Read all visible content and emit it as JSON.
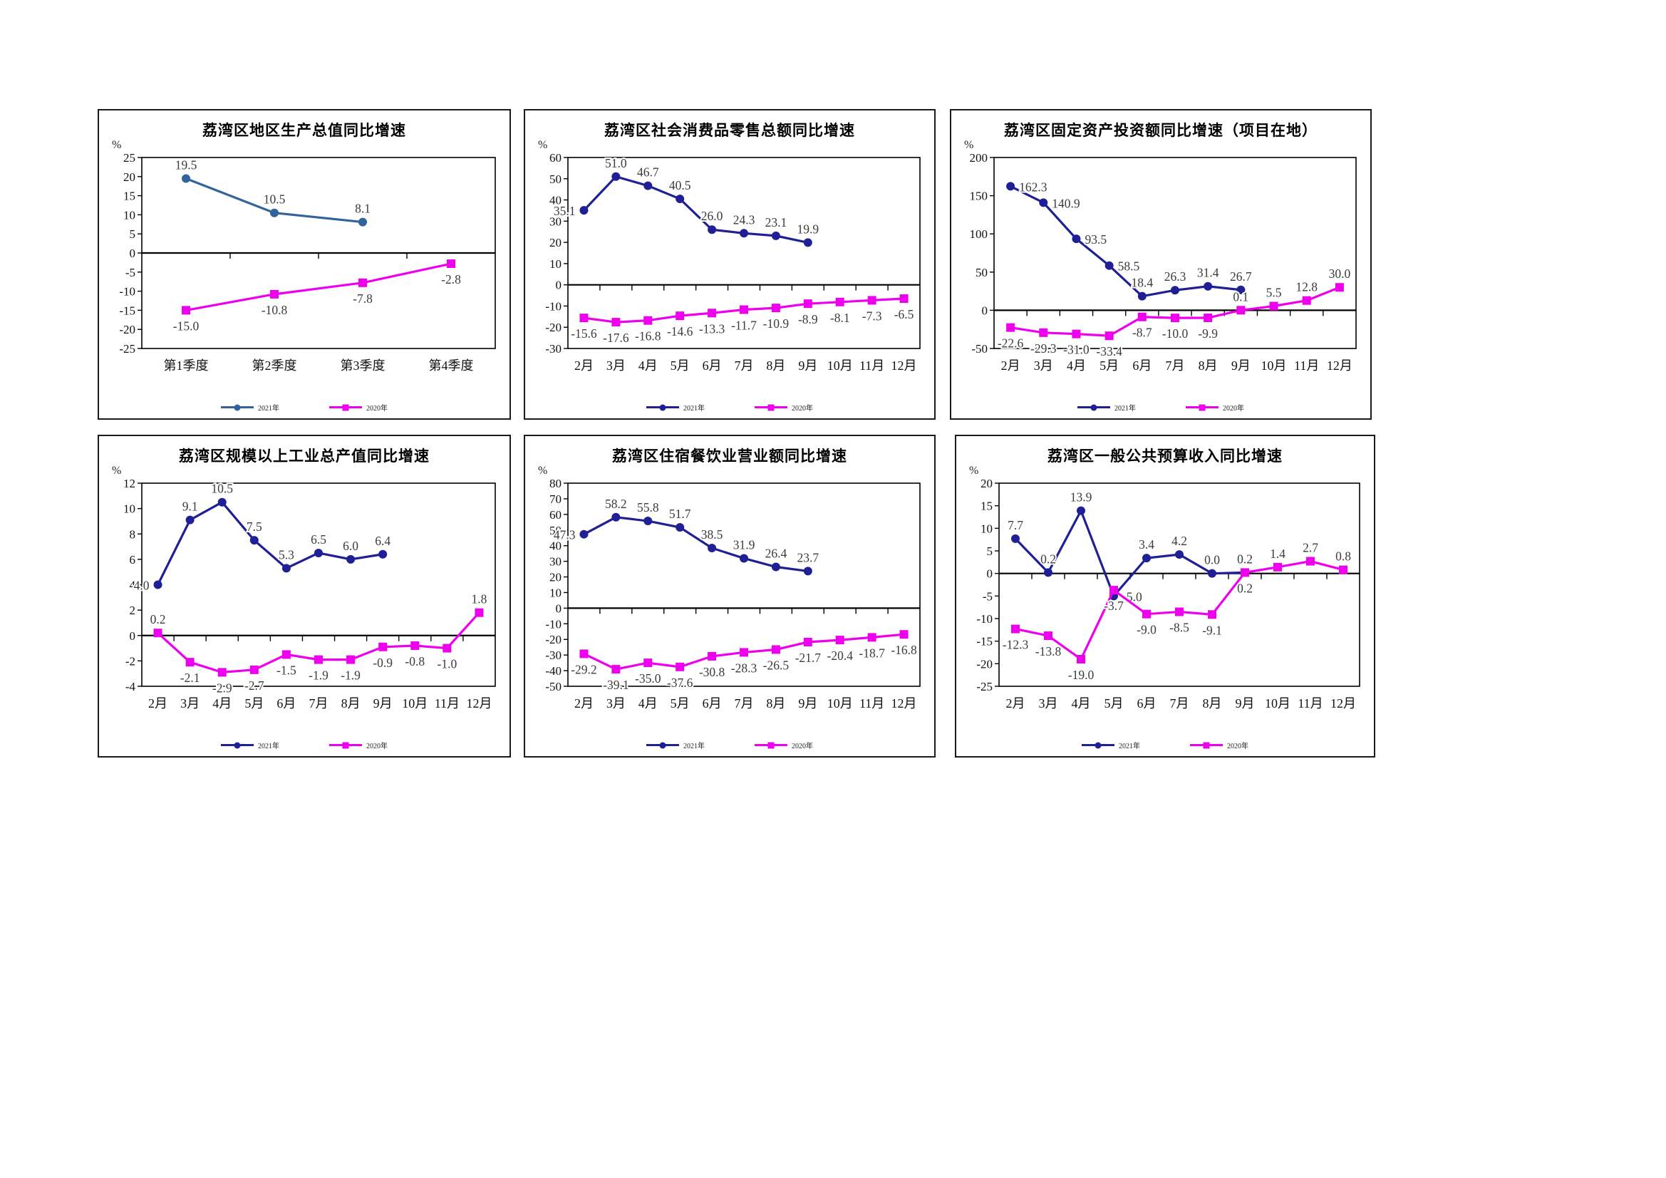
{
  "page": {
    "background": "#ffffff"
  },
  "chart_data": [
    {
      "type": "line",
      "title": "荔湾区地区生产总值同比增速",
      "unit": "%",
      "categories": [
        "第1季度",
        "第2季度",
        "第3季度",
        "第4季度"
      ],
      "ylim": [
        -25,
        25
      ],
      "ytick_step": 5,
      "grid": false,
      "legend_position": "bottom",
      "series": [
        {
          "name": "2021年",
          "color": "#31639c",
          "marker": "circle",
          "label_side": "above",
          "values": [
            19.5,
            10.5,
            8.1
          ],
          "label_side_overrides": {}
        },
        {
          "name": "2020年",
          "color": "#ee00ee",
          "marker": "square",
          "label_side": "below",
          "values": [
            -15.0,
            -10.8,
            -7.8,
            -2.8
          ],
          "label_side_overrides": {}
        }
      ]
    },
    {
      "type": "line",
      "title": "荔湾区社会消费品零售总额同比增速",
      "unit": "%",
      "categories": [
        "2月",
        "3月",
        "4月",
        "5月",
        "6月",
        "7月",
        "8月",
        "9月",
        "10月",
        "11月",
        "12月"
      ],
      "ylim": [
        -30,
        60
      ],
      "ytick_step": 10,
      "grid": false,
      "legend_position": "bottom",
      "series": [
        {
          "name": "2021年",
          "color": "#1f1f96",
          "marker": "circle",
          "label_side": "above",
          "values": [
            35.1,
            51.0,
            46.7,
            40.5,
            26.0,
            24.3,
            23.1,
            19.9
          ],
          "label_side_overrides": {
            "0": "left"
          }
        },
        {
          "name": "2020年",
          "color": "#ee00ee",
          "marker": "square",
          "label_side": "below",
          "values": [
            -15.6,
            -17.6,
            -16.8,
            -14.6,
            -13.3,
            -11.7,
            -10.9,
            -8.9,
            -8.1,
            -7.3,
            -6.5
          ],
          "label_side_overrides": {}
        }
      ]
    },
    {
      "type": "line",
      "title": "荔湾区固定资产投资额同比增速（项目在地）",
      "unit": "%",
      "categories": [
        "2月",
        "3月",
        "4月",
        "5月",
        "6月",
        "7月",
        "8月",
        "9月",
        "10月",
        "11月",
        "12月"
      ],
      "ylim": [
        -50,
        200
      ],
      "ytick_step": 50,
      "grid": false,
      "legend_position": "bottom",
      "series": [
        {
          "name": "2021年",
          "color": "#1f1f96",
          "marker": "circle",
          "label_side": "above",
          "values": [
            162.3,
            140.9,
            93.5,
            58.5,
            18.4,
            26.3,
            31.4,
            26.7
          ],
          "label_side_overrides": {
            "0": "right",
            "1": "right",
            "2": "right",
            "3": "right"
          }
        },
        {
          "name": "2020年",
          "color": "#ee00ee",
          "marker": "square",
          "label_side": "below",
          "values": [
            -22.6,
            -29.3,
            -31.0,
            -33.4,
            -8.7,
            -10.0,
            -9.9,
            0.1,
            5.5,
            12.8,
            30.0
          ],
          "label_side_overrides": {
            "7": "above",
            "8": "above",
            "9": "above",
            "10": "above"
          }
        }
      ]
    },
    {
      "type": "line",
      "title": "荔湾区规模以上工业总产值同比增速",
      "unit": "%",
      "categories": [
        "2月",
        "3月",
        "4月",
        "5月",
        "6月",
        "7月",
        "8月",
        "9月",
        "10月",
        "11月",
        "12月"
      ],
      "ylim": [
        -4,
        12
      ],
      "ytick_step": 2,
      "grid": false,
      "legend_position": "bottom",
      "series": [
        {
          "name": "2021年",
          "color": "#1f1f96",
          "marker": "circle",
          "label_side": "above",
          "values": [
            4.0,
            9.1,
            10.5,
            7.5,
            5.3,
            6.5,
            6.0,
            6.4
          ],
          "label_side_overrides": {
            "0": "left"
          }
        },
        {
          "name": "2020年",
          "color": "#ee00ee",
          "marker": "square",
          "label_side": "below",
          "values": [
            0.2,
            -2.1,
            -2.9,
            -2.7,
            -1.5,
            -1.9,
            -1.9,
            -0.9,
            -0.8,
            -1.0,
            1.8
          ],
          "label_side_overrides": {
            "0": "above",
            "10": "above"
          }
        }
      ]
    },
    {
      "type": "line",
      "title": "荔湾区住宿餐饮业营业额同比增速",
      "unit": "%",
      "categories": [
        "2月",
        "3月",
        "4月",
        "5月",
        "6月",
        "7月",
        "8月",
        "9月",
        "10月",
        "11月",
        "12月"
      ],
      "ylim": [
        -50,
        80
      ],
      "ytick_step": 10,
      "grid": false,
      "legend_position": "bottom",
      "series": [
        {
          "name": "2021年",
          "color": "#1f1f96",
          "marker": "circle",
          "label_side": "above",
          "values": [
            47.3,
            58.2,
            55.8,
            51.7,
            38.5,
            31.9,
            26.4,
            23.7
          ],
          "label_side_overrides": {
            "0": "left"
          }
        },
        {
          "name": "2020年",
          "color": "#ee00ee",
          "marker": "square",
          "label_side": "below",
          "values": [
            -29.2,
            -39.1,
            -35.0,
            -37.6,
            -30.8,
            -28.3,
            -26.5,
            -21.7,
            -20.4,
            -18.7,
            -16.8
          ],
          "label_side_overrides": {}
        }
      ]
    },
    {
      "type": "line",
      "title": "荔湾区一般公共预算收入同比增速",
      "unit": "%",
      "categories": [
        "2月",
        "3月",
        "4月",
        "5月",
        "6月",
        "7月",
        "8月",
        "9月",
        "10月",
        "11月",
        "12月"
      ],
      "ylim": [
        -25,
        20
      ],
      "ytick_step": 5,
      "grid": false,
      "legend_position": "bottom",
      "series": [
        {
          "name": "2021年",
          "color": "#1f1f96",
          "marker": "circle",
          "label_side": "above",
          "values": [
            7.7,
            0.2,
            13.9,
            -5.0,
            3.4,
            4.2,
            0.0,
            0.2
          ],
          "label_side_overrides": {
            "3": "right"
          }
        },
        {
          "name": "2020年",
          "color": "#ee00ee",
          "marker": "square",
          "label_side": "below",
          "values": [
            -12.3,
            -13.8,
            -19.0,
            -3.7,
            -9.0,
            -8.5,
            -9.1,
            0.2,
            1.4,
            2.7,
            0.8
          ],
          "label_side_overrides": {
            "8": "above",
            "9": "above",
            "10": "above"
          }
        }
      ]
    }
  ]
}
